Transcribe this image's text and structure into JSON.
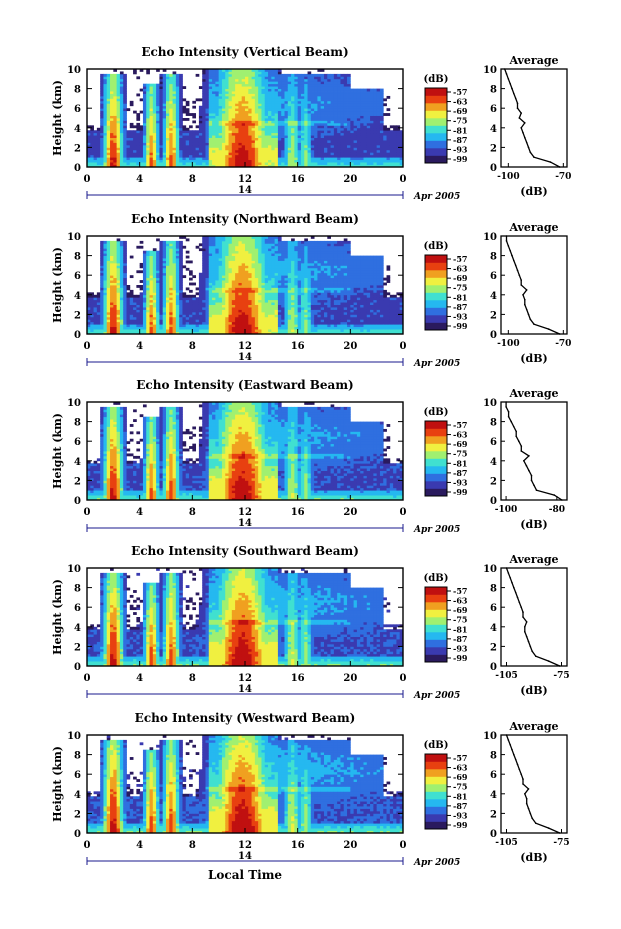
{
  "figure": {
    "date_label": "Apr 2005",
    "day_label": "14",
    "x_label": "Local Time",
    "y_label": "Height (km)",
    "colorbar_unit": "(dB)",
    "colorbar_ticks": [
      "-57",
      "-63",
      "-69",
      "-75",
      "-81",
      "-87",
      "-93",
      "-99"
    ],
    "colormap": [
      "#2a1a5e",
      "#3a3ab0",
      "#2f6fe0",
      "#25b8f0",
      "#40e0d0",
      "#a0f070",
      "#f0f040",
      "#f0a020",
      "#e84010",
      "#c01010"
    ],
    "null_color": "#ffffff"
  },
  "chart_data": [
    {
      "type": "heatmap",
      "title": "Echo Intensity (Vertical Beam)",
      "xlabel": "",
      "ylabel": "Height (km)",
      "xlim": [
        0,
        24
      ],
      "ylim": [
        0,
        10
      ],
      "x_ticks": [
        "0",
        "4",
        "8",
        "12",
        "16",
        "20",
        "0"
      ],
      "y_ticks": [
        "0",
        "2",
        "4",
        "6",
        "8",
        "10"
      ],
      "zlim": [
        -99,
        -57
      ],
      "profile": {
        "title": "Average",
        "xlabel": "(dB)",
        "x_ticks": [
          "-100",
          "-70"
        ],
        "xlim": [
          -104,
          -68
        ],
        "height_km": [
          0,
          0.5,
          1,
          1.5,
          2,
          2.5,
          3,
          3.5,
          4,
          4.5,
          5,
          5.5,
          6,
          6.5,
          7,
          7.5,
          8,
          8.5,
          9,
          9.5,
          10
        ],
        "value_db": [
          -72,
          -77,
          -86,
          -88,
          -89,
          -90,
          -91,
          -92,
          -93,
          -91,
          -94,
          -93,
          -95,
          -95,
          -96,
          -97,
          -98,
          -99,
          -100,
          -101,
          -102
        ]
      }
    },
    {
      "type": "heatmap",
      "title": "Echo Intensity (Northward Beam)",
      "xlabel": "",
      "ylabel": "Height (km)",
      "xlim": [
        0,
        24
      ],
      "ylim": [
        0,
        10
      ],
      "x_ticks": [
        "0",
        "4",
        "8",
        "12",
        "16",
        "20",
        "0"
      ],
      "y_ticks": [
        "0",
        "2",
        "4",
        "6",
        "8",
        "10"
      ],
      "zlim": [
        -99,
        -57
      ],
      "profile": {
        "title": "Average",
        "xlabel": "(dB)",
        "x_ticks": [
          "-100",
          "-70"
        ],
        "xlim": [
          -104,
          -68
        ],
        "height_km": [
          0,
          0.5,
          1,
          1.5,
          2,
          2.5,
          3,
          3.5,
          4,
          4.5,
          5,
          5.5,
          6,
          6.5,
          7,
          7.5,
          8,
          8.5,
          9,
          9.5,
          10
        ],
        "value_db": [
          -72,
          -78,
          -86,
          -88,
          -89,
          -90,
          -91,
          -91,
          -92,
          -90,
          -93,
          -93,
          -94,
          -95,
          -96,
          -97,
          -98,
          -99,
          -100,
          -101,
          -101
        ]
      }
    },
    {
      "type": "heatmap",
      "title": "Echo Intensity (Eastward Beam)",
      "xlabel": "",
      "ylabel": "Height (km)",
      "xlim": [
        0,
        24
      ],
      "ylim": [
        0,
        10
      ],
      "x_ticks": [
        "0",
        "4",
        "8",
        "12",
        "16",
        "20",
        "0"
      ],
      "y_ticks": [
        "0",
        "2",
        "4",
        "6",
        "8",
        "10"
      ],
      "zlim": [
        -99,
        -57
      ],
      "profile": {
        "title": "Average",
        "xlabel": "(dB)",
        "x_ticks": [
          "-100",
          "-80"
        ],
        "xlim": [
          -102,
          -76
        ],
        "height_km": [
          0,
          0.5,
          1,
          1.5,
          2,
          2.5,
          3,
          3.5,
          4,
          4.5,
          5,
          5.5,
          6,
          6.5,
          7,
          7.5,
          8,
          8.5,
          9,
          9.5,
          10
        ],
        "value_db": [
          -78,
          -81,
          -88,
          -89,
          -90,
          -90,
          -91,
          -92,
          -93,
          -91,
          -94,
          -94,
          -95,
          -96,
          -96,
          -97,
          -98,
          -99,
          -99,
          -100,
          -100
        ]
      }
    },
    {
      "type": "heatmap",
      "title": "Echo Intensity (Southward Beam)",
      "xlabel": "",
      "ylabel": "Height (km)",
      "xlim": [
        0,
        24
      ],
      "ylim": [
        0,
        10
      ],
      "x_ticks": [
        "0",
        "4",
        "8",
        "12",
        "16",
        "20",
        "0"
      ],
      "y_ticks": [
        "0",
        "2",
        "4",
        "6",
        "8",
        "10"
      ],
      "zlim": [
        -99,
        -57
      ],
      "profile": {
        "title": "Average",
        "xlabel": "(dB)",
        "x_ticks": [
          "-105",
          "-75"
        ],
        "xlim": [
          -108,
          -72
        ],
        "height_km": [
          0,
          0.5,
          1,
          1.5,
          2,
          2.5,
          3,
          3.5,
          4,
          4.5,
          5,
          5.5,
          6,
          6.5,
          7,
          7.5,
          8,
          8.5,
          9,
          9.5,
          10
        ],
        "value_db": [
          -76,
          -82,
          -89,
          -91,
          -92,
          -93,
          -94,
          -95,
          -95,
          -94,
          -96,
          -96,
          -97,
          -98,
          -99,
          -100,
          -101,
          -102,
          -103,
          -104,
          -105
        ]
      }
    },
    {
      "type": "heatmap",
      "title": "Echo Intensity (Westward Beam)",
      "xlabel": "Local Time",
      "ylabel": "Height (km)",
      "xlim": [
        0,
        24
      ],
      "ylim": [
        0,
        10
      ],
      "x_ticks": [
        "0",
        "4",
        "8",
        "12",
        "16",
        "20",
        "0"
      ],
      "y_ticks": [
        "0",
        "2",
        "4",
        "6",
        "8",
        "10"
      ],
      "zlim": [
        -99,
        -57
      ],
      "profile": {
        "title": "Average",
        "xlabel": "(dB)",
        "x_ticks": [
          "-105",
          "-75"
        ],
        "xlim": [
          -108,
          -72
        ],
        "height_km": [
          0,
          0.5,
          1,
          1.5,
          2,
          2.5,
          3,
          3.5,
          4,
          4.5,
          5,
          5.5,
          6,
          6.5,
          7,
          7.5,
          8,
          8.5,
          9,
          9.5,
          10
        ],
        "value_db": [
          -76,
          -82,
          -89,
          -91,
          -92,
          -93,
          -94,
          -94,
          -95,
          -93,
          -96,
          -96,
          -97,
          -98,
          -99,
          -100,
          -101,
          -102,
          -103,
          -104,
          -105
        ]
      }
    }
  ]
}
